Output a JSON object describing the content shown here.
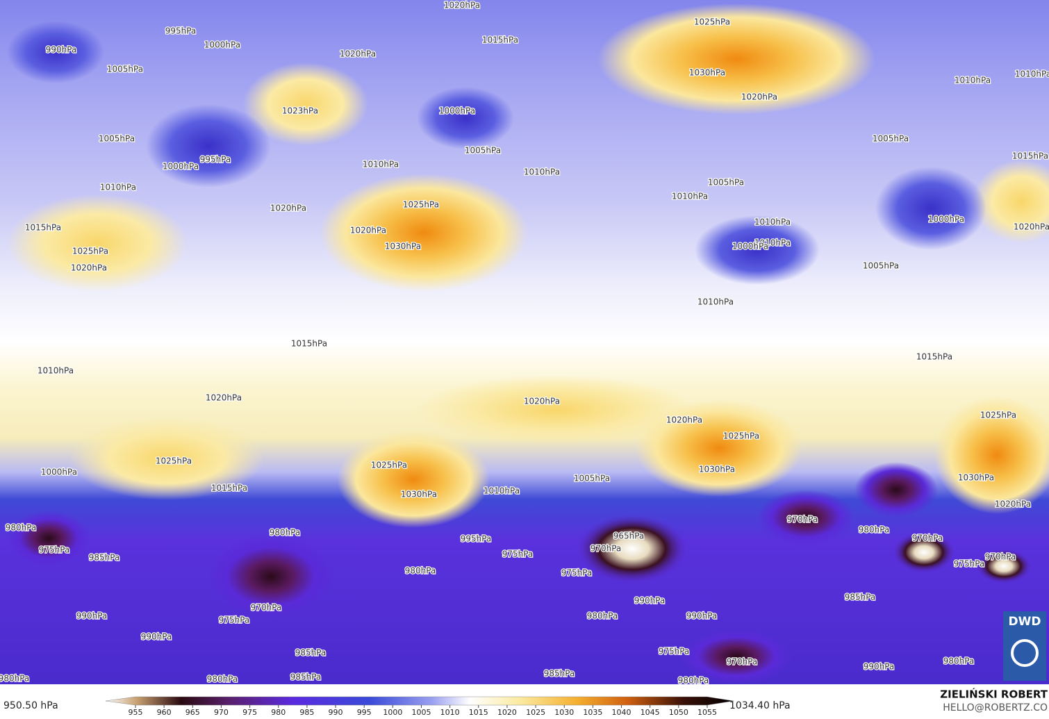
{
  "map": {
    "isobar_labels": [
      "1020hPa",
      "995hPa",
      "990hPa",
      "1000hPa",
      "1005hPa",
      "1015hPa",
      "1020hPa",
      "1025hPa",
      "1030hPa",
      "1020hPa",
      "1010hPa",
      "1010hPa",
      "1023hPa",
      "1000hPa",
      "1005hPa",
      "995hPa",
      "1000hPa",
      "1005hPa",
      "1010hPa",
      "1010hPa",
      "1005hPa",
      "1015hPa",
      "1010hPa",
      "1025hPa",
      "1020hPa",
      "1030hPa",
      "1015hPa",
      "1025hPa",
      "1020hPa",
      "1020hPa",
      "1005hPa",
      "1010hPa",
      "1010hPa",
      "1010hPa",
      "1000hPa",
      "1000hPa",
      "1020hPa",
      "1005hPa",
      "1010hPa",
      "1015hPa",
      "1010hPa",
      "1015hPa",
      "1020hPa",
      "1020hPa",
      "1020hPa",
      "1025hPa",
      "1030hPa",
      "1025hPa",
      "1030hPa",
      "1020hPa",
      "1025hPa",
      "1025hPa",
      "1030hPa",
      "1015hPa",
      "1005hPa",
      "1010hPa",
      "1000hPa",
      "980hPa",
      "975hPa",
      "985hPa",
      "980hPa",
      "995hPa",
      "975hPa",
      "980hPa",
      "970hPa",
      "965hPa",
      "975hPa",
      "970hPa",
      "980hPa",
      "970hPa",
      "975hPa",
      "970hPa",
      "985hPa",
      "990hPa",
      "980hPa",
      "990hPa",
      "970hPa",
      "975hPa",
      "990hPa",
      "990hPa",
      "985hPa",
      "975hPa",
      "970hPa",
      "985hPa",
      "980hPa",
      "980hPa",
      "990hPa",
      "980hPa",
      "985hPa",
      "980hPa"
    ]
  },
  "colorbar": {
    "min_label": "950.50 hPa",
    "max_label": "1034.40 hPa",
    "ticks": [
      955,
      960,
      965,
      970,
      975,
      980,
      985,
      990,
      995,
      1000,
      1005,
      1010,
      1015,
      1020,
      1025,
      1030,
      1035,
      1040,
      1045,
      1050,
      1055
    ]
  },
  "credits": {
    "author": "ZIELIŃSKI ROBERT",
    "email": "HELLO@ROBERTZ.CO",
    "logo": "DWD"
  }
}
